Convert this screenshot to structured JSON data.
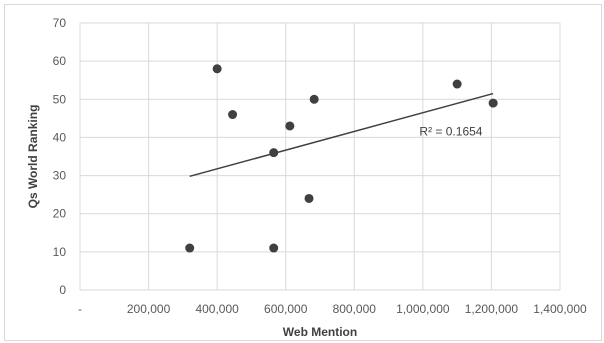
{
  "chart_data": {
    "type": "scatter",
    "title": "",
    "xlabel": "Web Mention",
    "ylabel": "Qs World Ranking",
    "xlim": [
      0,
      1400000
    ],
    "ylim": [
      0,
      70
    ],
    "x_tick_values": [
      0,
      200000,
      400000,
      600000,
      800000,
      1000000,
      1200000,
      1400000
    ],
    "x_tick_labels": [
      "-",
      "200,000",
      "400,000",
      "600,000",
      "800,000",
      "1,000,000",
      "1,200,000",
      "1,400,000"
    ],
    "y_tick_values": [
      0,
      10,
      20,
      30,
      40,
      50,
      60,
      70
    ],
    "y_tick_labels": [
      "0",
      "10",
      "20",
      "30",
      "40",
      "50",
      "60",
      "70"
    ],
    "grid": true,
    "series": [
      {
        "points": [
          {
            "x": 320000,
            "y": 11
          },
          {
            "x": 400000,
            "y": 58
          },
          {
            "x": 445000,
            "y": 46
          },
          {
            "x": 565000,
            "y": 36
          },
          {
            "x": 565000,
            "y": 11
          },
          {
            "x": 612000,
            "y": 43
          },
          {
            "x": 668000,
            "y": 24
          },
          {
            "x": 683000,
            "y": 50
          },
          {
            "x": 1100000,
            "y": 54
          },
          {
            "x": 1205000,
            "y": 49
          }
        ]
      }
    ],
    "trendline": {
      "type": "linear",
      "x_start": 320000,
      "y_start": 29.8,
      "x_end": 1205000,
      "y_end": 51.5
    },
    "annotation": {
      "text": "R² = 0.1654",
      "x": 990000,
      "y": 40.5
    },
    "colors": {
      "marker": "#404040",
      "trendline": "#404040",
      "grid": "#d9d9d9",
      "tick_text": "#595959"
    }
  }
}
